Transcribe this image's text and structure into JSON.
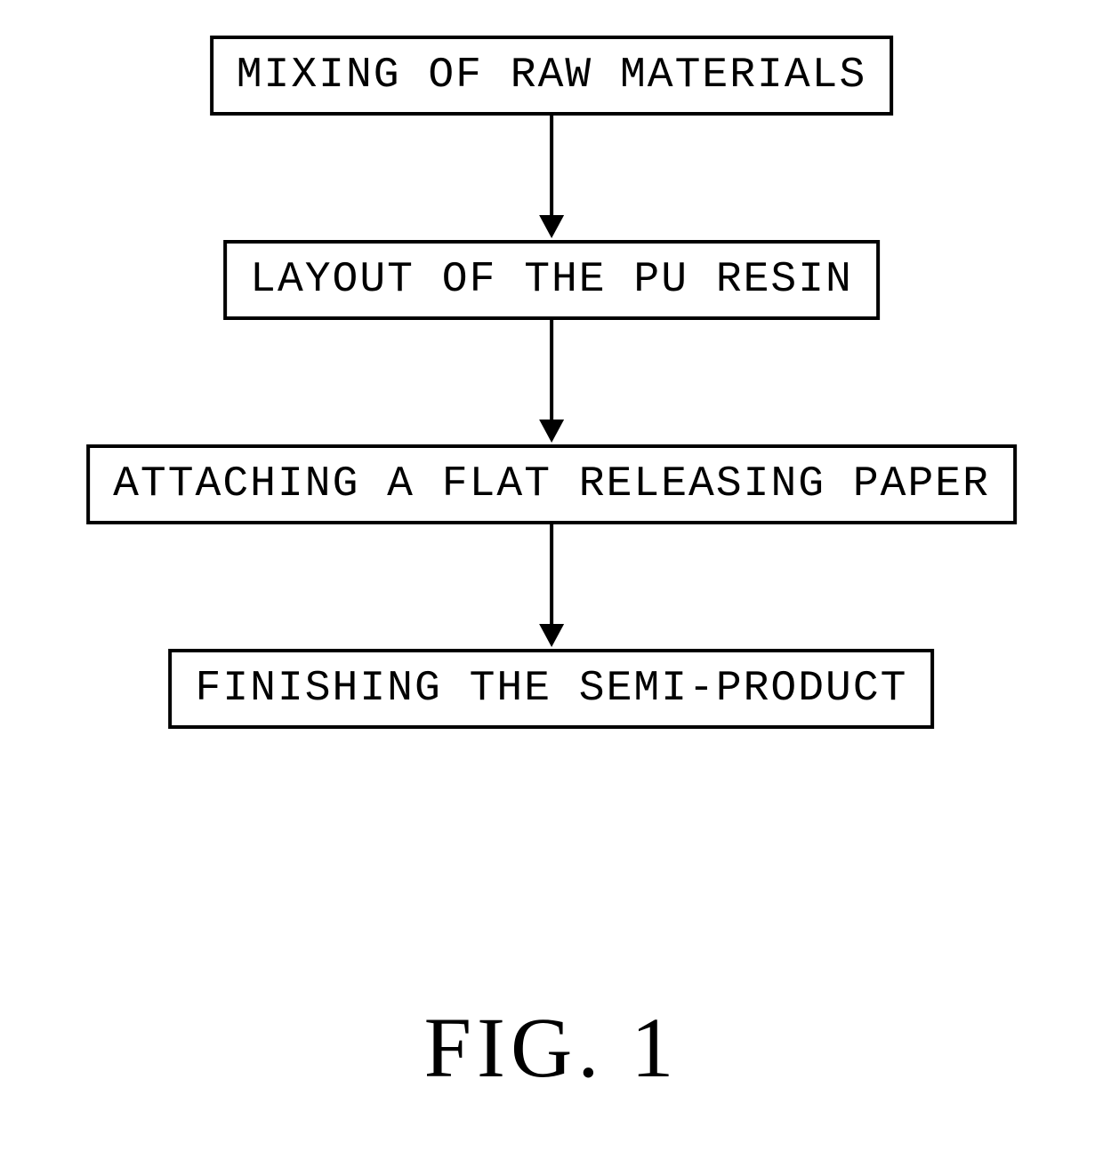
{
  "flowchart": {
    "type": "flowchart",
    "background_color": "#ffffff",
    "box_border_color": "#000000",
    "box_border_width": 4,
    "box_font_family": "Courier New, monospace",
    "box_font_size": 48,
    "box_letter_spacing": 2,
    "arrow_color": "#000000",
    "arrow_line_width": 4,
    "arrow_line_length": 112,
    "arrow_head_width": 28,
    "arrow_head_height": 26,
    "nodes": [
      {
        "id": "step1",
        "label": "MIXING OF RAW MATERIALS"
      },
      {
        "id": "step2",
        "label": "LAYOUT OF THE PU RESIN"
      },
      {
        "id": "step3",
        "label": "ATTACHING A FLAT RELEASING PAPER"
      },
      {
        "id": "step4",
        "label": "FINISHING THE SEMI-PRODUCT"
      }
    ],
    "edges": [
      {
        "from": "step1",
        "to": "step2"
      },
      {
        "from": "step2",
        "to": "step3"
      },
      {
        "from": "step3",
        "to": "step4"
      }
    ]
  },
  "figure": {
    "label": "FIG. 1",
    "font_family": "Times New Roman, serif",
    "font_size": 96,
    "letter_spacing": 6,
    "color": "#000000"
  }
}
